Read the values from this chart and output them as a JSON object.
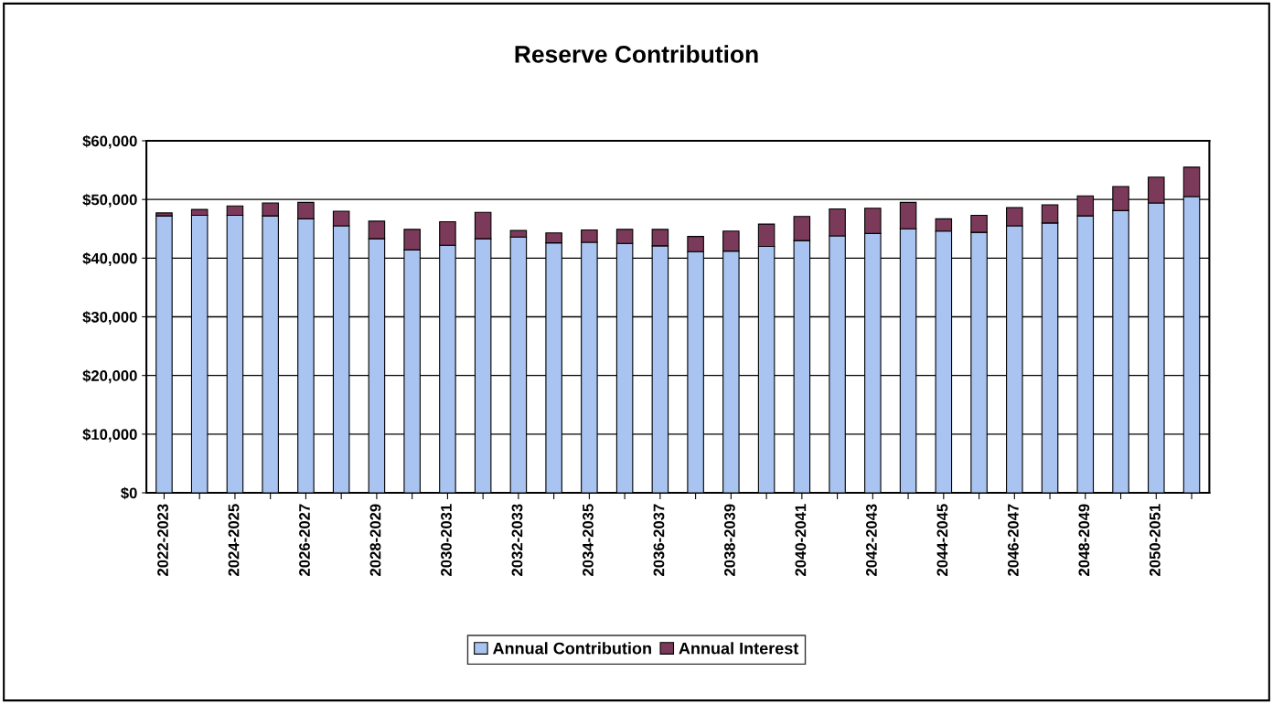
{
  "chart_data": {
    "type": "bar",
    "title": "Reserve Contribution",
    "stacked": true,
    "categories": [
      "2022-2023",
      null,
      "2024-2025",
      null,
      "2026-2027",
      null,
      "2028-2029",
      null,
      "2030-2031",
      null,
      "2032-2033",
      null,
      "2034-2035",
      null,
      "2036-2037",
      null,
      "2038-2039",
      null,
      "2040-2041",
      null,
      "2042-2043",
      null,
      "2044-2045",
      null,
      "2046-2047",
      null,
      "2048-2049",
      null,
      "2050-2051",
      null
    ],
    "series": [
      {
        "name": "Annual Contribution",
        "color": "#a9c4f0",
        "values": [
          47200,
          47300,
          47300,
          47200,
          46700,
          45500,
          43300,
          41400,
          42200,
          43300,
          43600,
          42600,
          42700,
          42500,
          42100,
          41100,
          41200,
          42000,
          43000,
          43800,
          44200,
          45000,
          44600,
          44400,
          45500,
          46000,
          47200,
          48100,
          49400,
          50500
        ]
      },
      {
        "name": "Annual Interest",
        "color": "#7b3a5a",
        "values": [
          500,
          1000,
          1600,
          2200,
          2800,
          2500,
          3000,
          3500,
          4000,
          4500,
          1100,
          1700,
          2100,
          2400,
          2800,
          2600,
          3400,
          3800,
          4100,
          4600,
          4300,
          4500,
          2100,
          2900,
          3100,
          3100,
          3400,
          4100,
          4400,
          5000
        ]
      }
    ],
    "ylim": [
      0,
      60000
    ],
    "yticks": [
      {
        "value": 0,
        "label": "$0"
      },
      {
        "value": 10000,
        "label": "$10,000"
      },
      {
        "value": 20000,
        "label": "$20,000"
      },
      {
        "value": 30000,
        "label": "$30,000"
      },
      {
        "value": 40000,
        "label": "$40,000"
      },
      {
        "value": 50000,
        "label": "$50,000"
      },
      {
        "value": 60000,
        "label": "$60,000"
      }
    ],
    "grid": "y",
    "legend": "bottom"
  }
}
